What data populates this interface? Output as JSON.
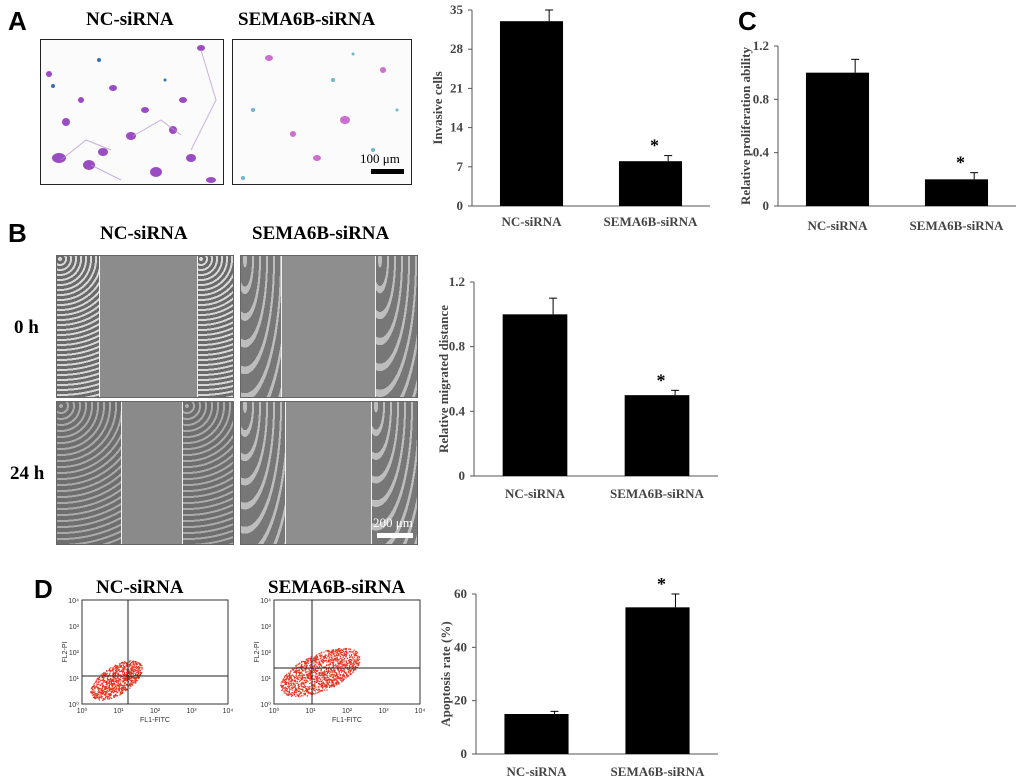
{
  "panels": {
    "A": {
      "letter": "A",
      "image_titles": [
        "NC-siRNA",
        "SEMA6B-siRNA"
      ],
      "scale_bar": "100 μm"
    },
    "B": {
      "letter": "B",
      "image_titles": [
        "NC-siRNA",
        "SEMA6B-siRNA"
      ],
      "row_labels": [
        "0 h",
        "24 h"
      ],
      "scale_bar": "200 μm"
    },
    "C": {
      "letter": "C"
    },
    "D": {
      "letter": "D",
      "image_titles": [
        "NC-siRNA",
        "SEMA6B-siRNA"
      ],
      "flow_axes": {
        "x_label": "FL1-FITC",
        "y_label": "FL2-PI",
        "ticks": [
          "10⁰",
          "10¹",
          "10²",
          "10³",
          "10⁴"
        ]
      }
    }
  },
  "colors": {
    "bar": "#000000",
    "dots": "#e8321e",
    "axis": "#555555"
  },
  "chart_data": [
    {
      "id": "A-invasion",
      "type": "bar",
      "categories": [
        "NC-siRNA",
        "SEMA6B-siRNA"
      ],
      "values": [
        33,
        8
      ],
      "errors": [
        2,
        1
      ],
      "ylabel": "Invasive cells",
      "ylim": [
        0,
        35
      ],
      "yticks": [
        "0",
        "7",
        "14",
        "21",
        "28",
        "35"
      ],
      "significance": [
        "",
        "*"
      ]
    },
    {
      "id": "C-proliferation",
      "type": "bar",
      "categories": [
        "NC-siRNA",
        "SEMA6B-siRNA"
      ],
      "values": [
        1.0,
        0.2
      ],
      "errors": [
        0.1,
        0.05
      ],
      "ylabel": "Relative proliferation ability",
      "ylim": [
        0,
        1.2
      ],
      "yticks": [
        "0",
        "0.4",
        "0.8",
        "1.2"
      ],
      "significance": [
        "",
        "*"
      ]
    },
    {
      "id": "B-migration",
      "type": "bar",
      "categories": [
        "NC-siRNA",
        "SEMA6B-siRNA"
      ],
      "values": [
        1.0,
        0.5
      ],
      "errors": [
        0.1,
        0.03
      ],
      "ylabel": "Relative migrated distance",
      "ylim": [
        0,
        1.2
      ],
      "yticks": [
        "0",
        "0.4",
        "0.8",
        "1.2"
      ],
      "significance": [
        "",
        "*"
      ]
    },
    {
      "id": "D-apoptosis",
      "type": "bar",
      "categories": [
        "NC-siRNA",
        "SEMA6B-siRNA"
      ],
      "values": [
        15,
        55
      ],
      "errors": [
        1,
        5
      ],
      "ylabel": "Apoptosis rate (%)",
      "ylim": [
        0,
        60
      ],
      "yticks": [
        "0",
        "20",
        "40",
        "60"
      ],
      "significance": [
        "",
        "*"
      ]
    }
  ]
}
